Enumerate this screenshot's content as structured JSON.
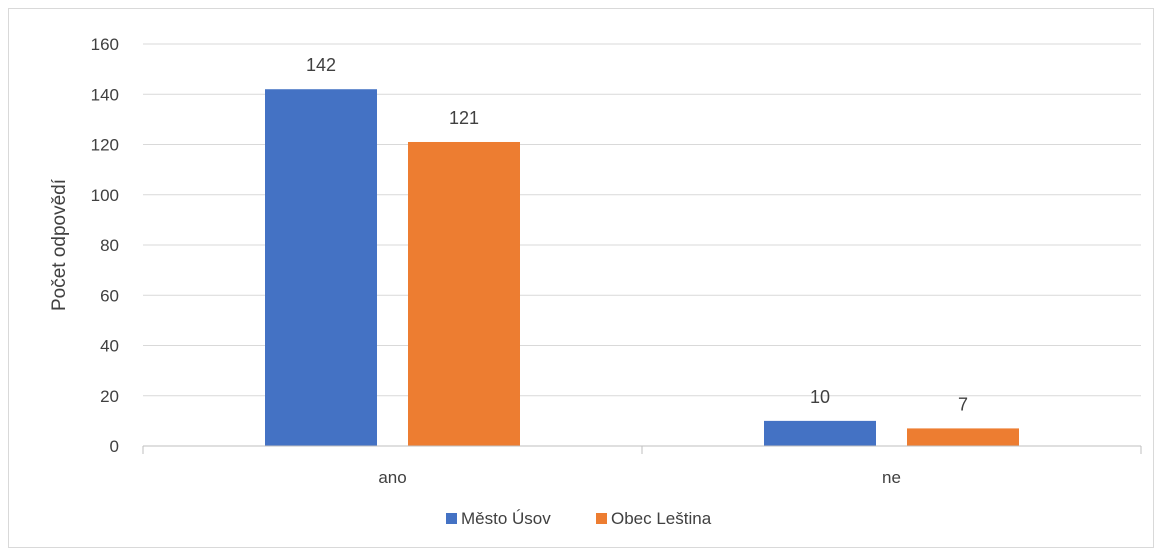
{
  "chart_data": {
    "type": "bar",
    "title": "",
    "xlabel": "",
    "ylabel": "Počet odpovědí",
    "ylim": [
      0,
      160
    ],
    "yticks": [
      0,
      20,
      40,
      60,
      80,
      100,
      120,
      140,
      160
    ],
    "categories": [
      "ano",
      "ne"
    ],
    "series": [
      {
        "name": "Město Úsov",
        "color": "#4472C4",
        "values": [
          142,
          10
        ]
      },
      {
        "name": "Obec Leština",
        "color": "#ED7D31",
        "values": [
          121,
          7
        ]
      }
    ],
    "grid": true,
    "legend_position": "bottom",
    "data_labels": true
  }
}
